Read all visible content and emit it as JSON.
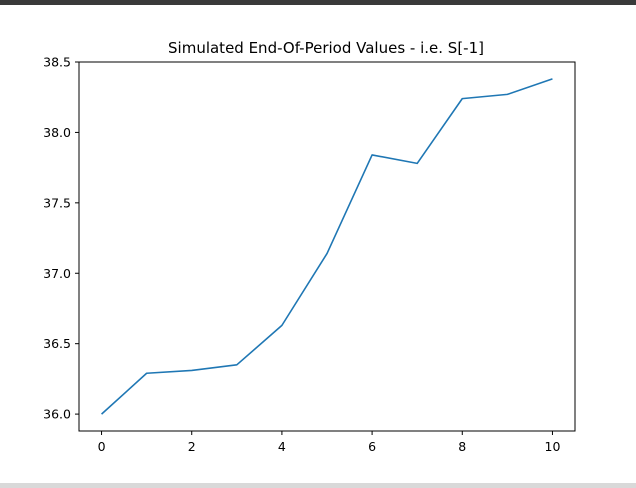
{
  "chart_data": {
    "type": "line",
    "title": "Simulated End-Of-Period Values - i.e. S[-1]",
    "xlabel": "",
    "ylabel": "",
    "x": [
      0,
      1,
      2,
      3,
      4,
      5,
      6,
      7,
      8,
      9,
      10
    ],
    "series": [
      {
        "values": [
          36.0,
          36.29,
          36.31,
          36.35,
          36.63,
          37.14,
          37.84,
          37.78,
          38.24,
          38.27,
          38.38
        ],
        "color": "#1f77b4"
      }
    ],
    "xlim": [
      -0.5,
      10.5
    ],
    "ylim": [
      35.88,
      38.5
    ],
    "xticks": [
      0,
      2,
      4,
      6,
      8,
      10
    ],
    "xtick_labels": [
      "0",
      "2",
      "4",
      "6",
      "8",
      "10"
    ],
    "yticks": [
      36.0,
      36.5,
      37.0,
      37.5,
      38.0,
      38.5
    ],
    "ytick_labels": [
      "36.0",
      "36.5",
      "37.0",
      "37.5",
      "38.0",
      "38.5"
    ],
    "grid": false,
    "legend": "none"
  },
  "colors": {
    "top_bar": "#3a3a3a",
    "bottom_bar": "#d9d9d9",
    "line": "#1f77b4"
  }
}
